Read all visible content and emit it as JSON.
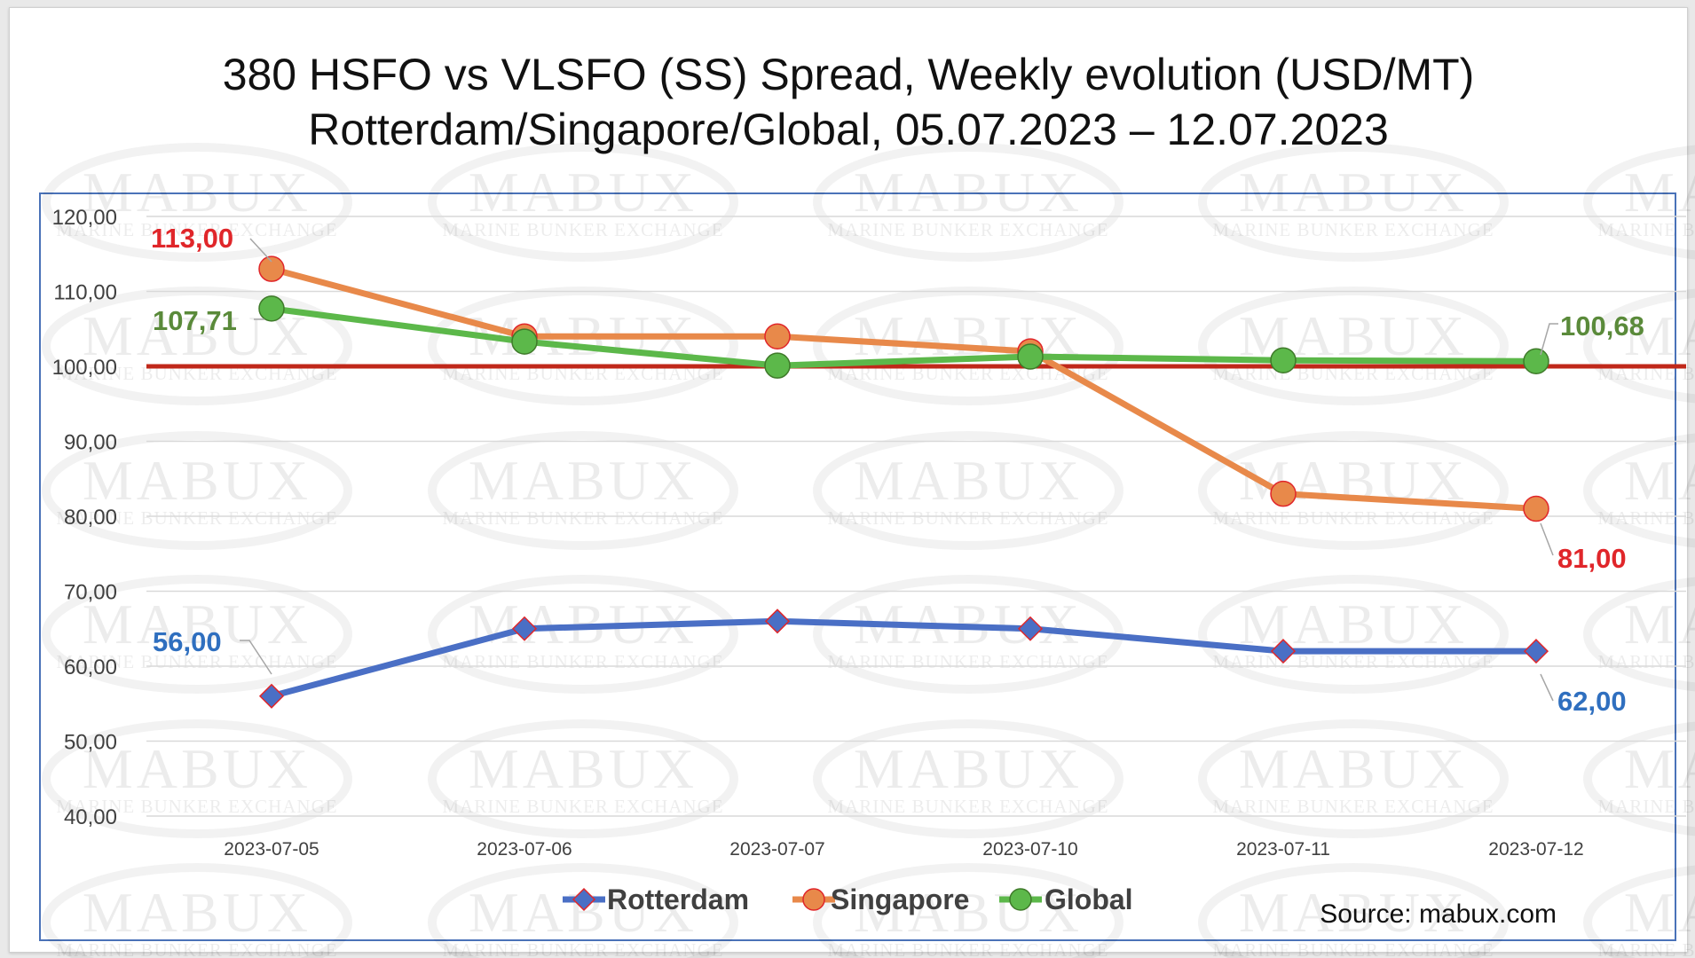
{
  "title_lines": [
    "380 HSFO vs VLSFO (SS) Spread, Weekly evolution (USD/MT)",
    "Rotterdam/Singapore/Global, 05.07.2023 – 12.07.2023"
  ],
  "watermark": {
    "big": "MABUX",
    "small": "MARINE BUNKER EXCHANGE"
  },
  "source": "Source: mabux.com",
  "chart_data": {
    "type": "line",
    "title": "380 HSFO vs VLSFO (SS) Spread, Weekly evolution (USD/MT) Rotterdam/Singapore/Global, 05.07.2023 – 12.07.2023",
    "categories": [
      "2023-07-05",
      "2023-07-06",
      "2023-07-07",
      "2023-07-10",
      "2023-07-11",
      "2023-07-12"
    ],
    "ylim": [
      40,
      120
    ],
    "y_ticks": [
      "40,00",
      "50,00",
      "60,00",
      "70,00",
      "80,00",
      "90,00",
      "100,00",
      "110,00",
      "120,00"
    ],
    "grid": "horizontal",
    "legend": "bottom",
    "reference_line": {
      "value": 100,
      "color": "#c0281a"
    },
    "series": [
      {
        "name": "Rotterdam",
        "marker": "diamond",
        "color": "#4a6fc5",
        "values": [
          56,
          65,
          66,
          65,
          62,
          62
        ],
        "labels": [
          {
            "index": 0,
            "text": "56,00",
            "color": "#2f6fbf"
          },
          {
            "index": 5,
            "text": "62,00",
            "color": "#2f6fbf"
          }
        ]
      },
      {
        "name": "Singapore",
        "marker": "circle",
        "color": "#e8894a",
        "values": [
          113,
          104,
          104,
          102,
          83,
          81
        ],
        "labels": [
          {
            "index": 0,
            "text": "113,00",
            "color": "#e0262a"
          },
          {
            "index": 5,
            "text": "81,00",
            "color": "#e0262a"
          }
        ]
      },
      {
        "name": "Global",
        "marker": "circle",
        "color": "#5cb84a",
        "values": [
          107.71,
          103.3,
          100.1,
          101.3,
          100.8,
          100.68
        ],
        "labels": [
          {
            "index": 0,
            "text": "107,71",
            "color": "#5a8a3a"
          },
          {
            "index": 5,
            "text": "100,68",
            "color": "#5a8a3a"
          }
        ]
      }
    ]
  }
}
